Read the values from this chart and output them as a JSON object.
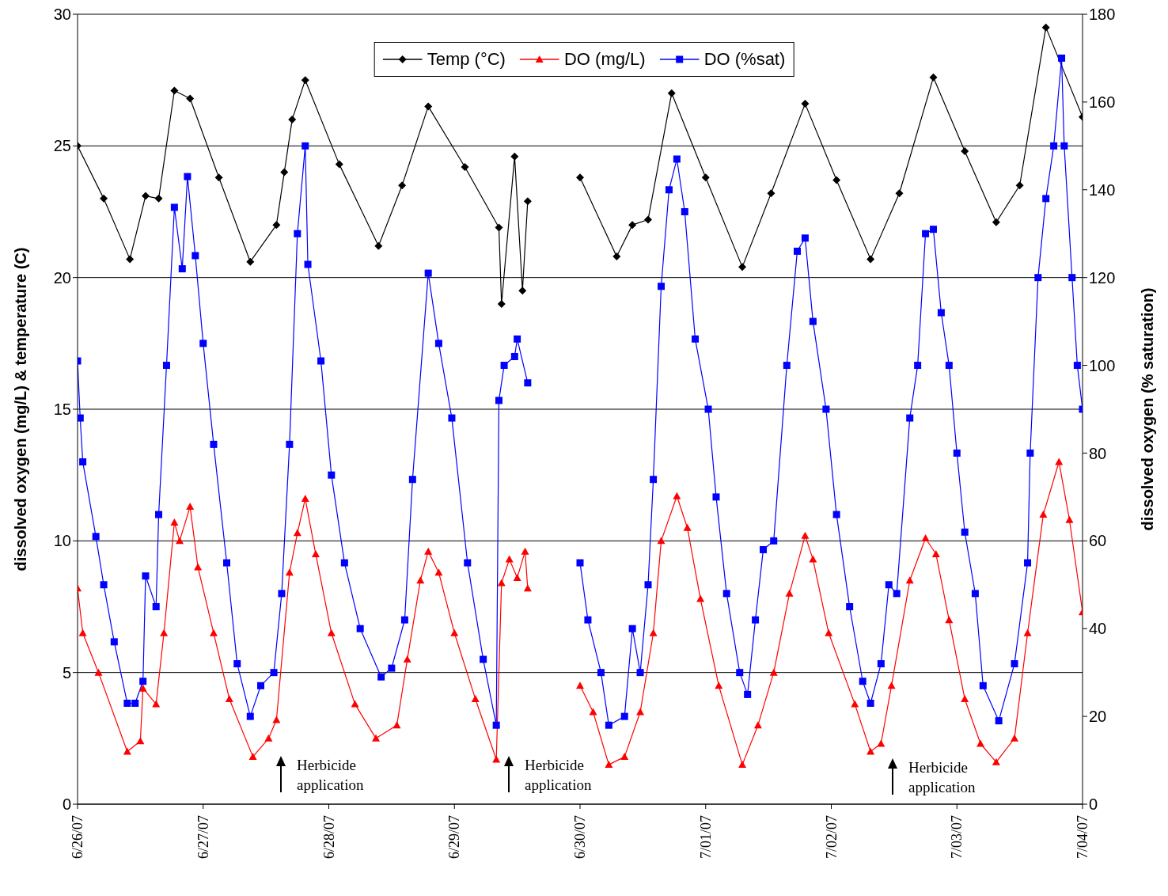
{
  "chart_data": {
    "type": "line",
    "ylabel": "dissolved oxygen (mg/L) & temperature (C)",
    "y2label": "dissolved oxygen (% saturation)",
    "xlim": [
      "--06-26",
      "--07-04"
    ],
    "xticks": [
      {
        "value": "--06-26",
        "label": "6/26/07"
      },
      {
        "value": "--06-27",
        "label": "6/27/07"
      },
      {
        "value": "--06-28",
        "label": "6/28/07"
      },
      {
        "value": "--06-29",
        "label": "6/29/07"
      },
      {
        "value": "--06-30",
        "label": "6/30/07"
      },
      {
        "value": "--07-01",
        "label": "7/01/07"
      },
      {
        "value": "--07-02",
        "label": "7/02/07"
      },
      {
        "value": "--07-03",
        "label": "7/03/07"
      },
      {
        "value": "--07-04",
        "label": "7/04/07"
      }
    ],
    "ylim": [
      0,
      30
    ],
    "yticks": [
      0,
      5,
      10,
      15,
      20,
      25,
      30
    ],
    "y2lim": [
      0,
      180
    ],
    "y2ticks": [
      0,
      20,
      40,
      60,
      80,
      100,
      120,
      140,
      160,
      180
    ],
    "grid": "y",
    "legend": "top",
    "series": [
      {
        "name": "Temp (°C)",
        "color": "#000000",
        "marker": "diamond",
        "x": [
          "--06-26T00:00",
          "--06-26T05:00",
          "--06-26T10:00",
          "--06-26T13:00",
          "--06-26T15:30",
          "--06-26T18:30",
          "--06-26T21:30",
          "--06-27T03:00",
          "--06-27T09:00",
          "--06-27T14:00",
          "--06-27T15:30",
          "--06-27T17:00",
          "--06-27T19:30",
          "--06-28T02:00",
          "--06-28T09:30",
          "--06-28T14:00",
          "--06-28T19:00",
          "--06-29T02:00",
          "--06-29T08:30",
          "--06-29T09:00",
          "--06-29T11:30",
          "--06-29T13:00",
          "--06-29T14:00",
          "--06-29T18:00",
          "--06-30T00:00",
          "--06-30T07:00",
          "--06-30T10:00",
          "--06-30T13:00",
          "--06-30T17:30",
          "--07-01T00:00",
          "--07-01T07:00",
          "--07-01T12:30",
          "--07-01T19:00",
          "--07-02T01:00",
          "--07-02T07:30",
          "--07-02T13:00",
          "--07-02T19:30",
          "--07-03T01:30",
          "--07-03T07:30",
          "--07-03T12:00",
          "--07-03T17:00",
          "--07-04T00:00"
        ],
        "values": [
          25.0,
          23.0,
          20.7,
          23.1,
          23.0,
          27.1,
          26.8,
          23.8,
          20.6,
          22.0,
          24.0,
          26.0,
          27.5,
          24.3,
          21.2,
          23.5,
          26.5,
          24.2,
          21.9,
          19.0,
          24.6,
          19.5,
          22.9,
          null,
          23.8,
          20.8,
          22.0,
          22.2,
          27.0,
          23.8,
          20.4,
          23.2,
          26.6,
          23.7,
          20.7,
          23.2,
          27.6,
          24.8,
          22.1,
          23.5,
          29.5,
          26.1
        ]
      },
      {
        "name": "DO (mg/L)",
        "color": "#ff0000",
        "marker": "triangle",
        "x": [
          "--06-26T00:00",
          "--06-26T01:00",
          "--06-26T04:00",
          "--06-26T09:30",
          "--06-26T12:00",
          "--06-26T12:30",
          "--06-26T15:00",
          "--06-26T16:30",
          "--06-26T18:30",
          "--06-26T19:30",
          "--06-26T21:30",
          "--06-26T23:00",
          "--06-27T02:00",
          "--06-27T05:00",
          "--06-27T09:30",
          "--06-27T12:30",
          "--06-27T14:00",
          "--06-27T16:30",
          "--06-27T18:00",
          "--06-27T19:30",
          "--06-27T21:30",
          "--06-28T00:30",
          "--06-28T05:00",
          "--06-28T09:00",
          "--06-28T13:00",
          "--06-28T15:00",
          "--06-28T17:30",
          "--06-28T19:00",
          "--06-28T21:00",
          "--06-29T00:00",
          "--06-29T04:00",
          "--06-29T08:00",
          "--06-29T09:00",
          "--06-29T10:30",
          "--06-29T12:00",
          "--06-29T13:30",
          "--06-29T14:00",
          "--06-29T18:00",
          "--06-30T00:00",
          "--06-30T02:30",
          "--06-30T05:30",
          "--06-30T08:30",
          "--06-30T11:30",
          "--06-30T14:00",
          "--06-30T15:30",
          "--06-30T18:30",
          "--06-30T20:30",
          "--06-30T23:00",
          "--07-01T02:30",
          "--07-01T07:00",
          "--07-01T10:00",
          "--07-01T13:00",
          "--07-01T16:00",
          "--07-01T19:00",
          "--07-01T20:30",
          "--07-01T23:30",
          "--07-02T04:30",
          "--07-02T07:30",
          "--07-02T09:30",
          "--07-02T11:30",
          "--07-02T15:00",
          "--07-02T18:00",
          "--07-02T20:00",
          "--07-02T22:30",
          "--07-03T01:30",
          "--07-03T04:30",
          "--07-03T07:30",
          "--07-03T11:00",
          "--07-03T13:30",
          "--07-03T16:30",
          "--07-03T19:30",
          "--07-03T21:30",
          "--07-04T00:00"
        ],
        "values": [
          8.2,
          6.5,
          5.0,
          2.0,
          2.4,
          4.4,
          3.8,
          6.5,
          10.7,
          10.0,
          11.3,
          9.0,
          6.5,
          4.0,
          1.8,
          2.5,
          3.2,
          8.8,
          10.3,
          11.6,
          9.5,
          6.5,
          3.8,
          2.5,
          3.0,
          5.5,
          8.5,
          9.6,
          8.8,
          6.5,
          4.0,
          1.7,
          8.4,
          9.3,
          8.6,
          9.6,
          8.2,
          null,
          4.5,
          3.5,
          1.5,
          1.8,
          3.5,
          6.5,
          10.0,
          11.7,
          10.5,
          7.8,
          4.5,
          1.5,
          3.0,
          5.0,
          8.0,
          10.2,
          9.3,
          6.5,
          3.8,
          2.0,
          2.3,
          4.5,
          8.5,
          10.1,
          9.5,
          7.0,
          4.0,
          2.3,
          1.6,
          2.5,
          6.5,
          11.0,
          13.0,
          10.8,
          7.3
        ]
      },
      {
        "name": "DO (%sat)",
        "color": "#0000ff",
        "marker": "square",
        "axis": "y2",
        "x": [
          "--06-26T00:00",
          "--06-26T00:30",
          "--06-26T01:00",
          "--06-26T03:30",
          "--06-26T05:00",
          "--06-26T07:00",
          "--06-26T09:30",
          "--06-26T11:00",
          "--06-26T12:30",
          "--06-26T13:00",
          "--06-26T15:00",
          "--06-26T15:30",
          "--06-26T17:00",
          "--06-26T18:30",
          "--06-26T20:00",
          "--06-26T21:00",
          "--06-26T22:30",
          "--06-27T00:00",
          "--06-27T02:00",
          "--06-27T04:30",
          "--06-27T06:30",
          "--06-27T09:00",
          "--06-27T11:00",
          "--06-27T13:30",
          "--06-27T15:00",
          "--06-27T16:30",
          "--06-27T18:00",
          "--06-27T19:30",
          "--06-27T20:00",
          "--06-27T22:30",
          "--06-28T00:30",
          "--06-28T03:00",
          "--06-28T06:00",
          "--06-28T10:00",
          "--06-28T12:00",
          "--06-28T14:30",
          "--06-28T16:00",
          "--06-28T19:00",
          "--06-28T21:00",
          "--06-28T23:30",
          "--06-29T02:30",
          "--06-29T05:30",
          "--06-29T08:00",
          "--06-29T08:30",
          "--06-29T09:30",
          "--06-29T11:30",
          "--06-29T12:00",
          "--06-29T14:00",
          "--06-29T18:00",
          "--06-30T00:00",
          "--06-30T01:30",
          "--06-30T04:00",
          "--06-30T05:30",
          "--06-30T08:30",
          "--06-30T10:00",
          "--06-30T11:30",
          "--06-30T13:00",
          "--06-30T14:00",
          "--06-30T15:30",
          "--06-30T17:00",
          "--06-30T18:30",
          "--06-30T20:00",
          "--06-30T22:00",
          "--07-01T00:30",
          "--07-01T02:00",
          "--07-01T04:00",
          "--07-01T06:30",
          "--07-01T08:00",
          "--07-01T09:30",
          "--07-01T11:00",
          "--07-01T13:00",
          "--07-01T15:30",
          "--07-01T17:30",
          "--07-01T19:00",
          "--07-01T20:30",
          "--07-01T23:00",
          "--07-02T01:00",
          "--07-02T03:30",
          "--07-02T06:00",
          "--07-02T07:30",
          "--07-02T09:30",
          "--07-02T11:00",
          "--07-02T12:30",
          "--07-02T15:00",
          "--07-02T16:30",
          "--07-02T18:00",
          "--07-02T19:30",
          "--07-02T21:00",
          "--07-02T22:30",
          "--07-03T00:00",
          "--07-03T01:30",
          "--07-03T03:30",
          "--07-03T05:00",
          "--07-03T08:00",
          "--07-03T11:00",
          "--07-03T13:30",
          "--07-03T14:00",
          "--07-03T15:30",
          "--07-03T17:00",
          "--07-03T18:30",
          "--07-03T20:00",
          "--07-03T20:30",
          "--07-03T22:00",
          "--07-03T23:00",
          "--07-04T00:00"
        ],
        "values": [
          101,
          88,
          78,
          61,
          50,
          37,
          23,
          23,
          28,
          52,
          45,
          66,
          100,
          136,
          122,
          143,
          125,
          105,
          82,
          55,
          32,
          20,
          27,
          30,
          48,
          82,
          130,
          150,
          123,
          101,
          75,
          55,
          40,
          29,
          31,
          42,
          74,
          121,
          105,
          88,
          55,
          33,
          18,
          92,
          100,
          102,
          106,
          96,
          null,
          55,
          42,
          30,
          18,
          20,
          40,
          30,
          50,
          74,
          118,
          140,
          147,
          135,
          106,
          90,
          70,
          48,
          30,
          25,
          42,
          58,
          60,
          100,
          126,
          129,
          110,
          90,
          66,
          45,
          28,
          23,
          32,
          50,
          48,
          88,
          100,
          130,
          131,
          112,
          100,
          80,
          62,
          48,
          27,
          19,
          32,
          55,
          80,
          120,
          138,
          150,
          170,
          150,
          120,
          100,
          90
        ]
      }
    ],
    "annotations": [
      "Herbicide application",
      "Herbicide application",
      "Herbicide application"
    ]
  }
}
